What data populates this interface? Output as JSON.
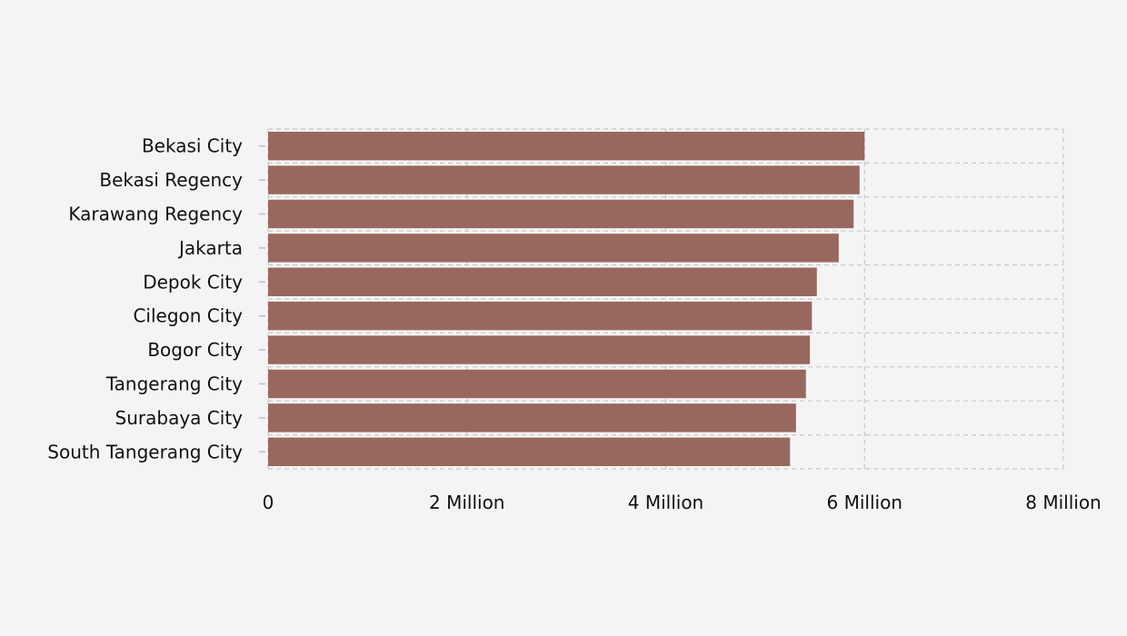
{
  "chart_data": {
    "type": "bar",
    "orientation": "horizontal",
    "title": "",
    "xlabel": "",
    "ylabel": "",
    "categories": [
      "Bekasi City",
      "Bekasi Regency",
      "Karawang Regency",
      "Jakarta",
      "Depok City",
      "Cilegon City",
      "Bogor City",
      "Tangerang City",
      "Surabaya City",
      "South Tangerang City"
    ],
    "values": [
      6000000,
      5950000,
      5890000,
      5740000,
      5520000,
      5470000,
      5450000,
      5410000,
      5310000,
      5250000
    ],
    "xlim": [
      0,
      8000000
    ],
    "x_ticks": [
      0,
      2000000,
      4000000,
      6000000,
      8000000
    ],
    "x_tick_labels": [
      "0",
      "2 Million",
      "4 Million",
      "6 Million",
      "8 Million"
    ],
    "grid": true,
    "legend": "none",
    "colors": {
      "bar": "#98685f",
      "background": "#f4f4f4",
      "grid": "#c8c8c8"
    }
  }
}
